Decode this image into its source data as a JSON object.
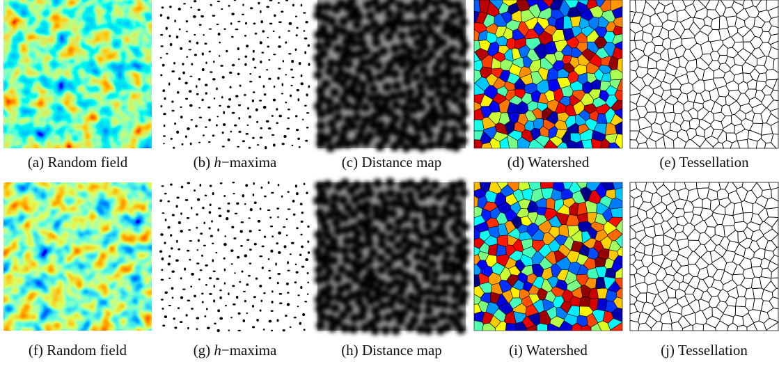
{
  "rows": [
    {
      "panels": [
        {
          "label": "(a)",
          "caption": "Random field"
        },
        {
          "label": "(b)",
          "symbol": "h",
          "caption": "−maxima"
        },
        {
          "label": "(c)",
          "caption": "Distance map"
        },
        {
          "label": "(d)",
          "caption": "Watershed"
        },
        {
          "label": "(e)",
          "caption": "Tessellation"
        }
      ]
    },
    {
      "panels": [
        {
          "label": "(f)",
          "caption": "Random field"
        },
        {
          "label": "(g)",
          "symbol": "h",
          "caption": "−maxima"
        },
        {
          "label": "(h)",
          "caption": "Distance map"
        },
        {
          "label": "(i)",
          "caption": "Watershed"
        },
        {
          "label": "(j)",
          "caption": "Tessellation"
        }
      ]
    }
  ]
}
